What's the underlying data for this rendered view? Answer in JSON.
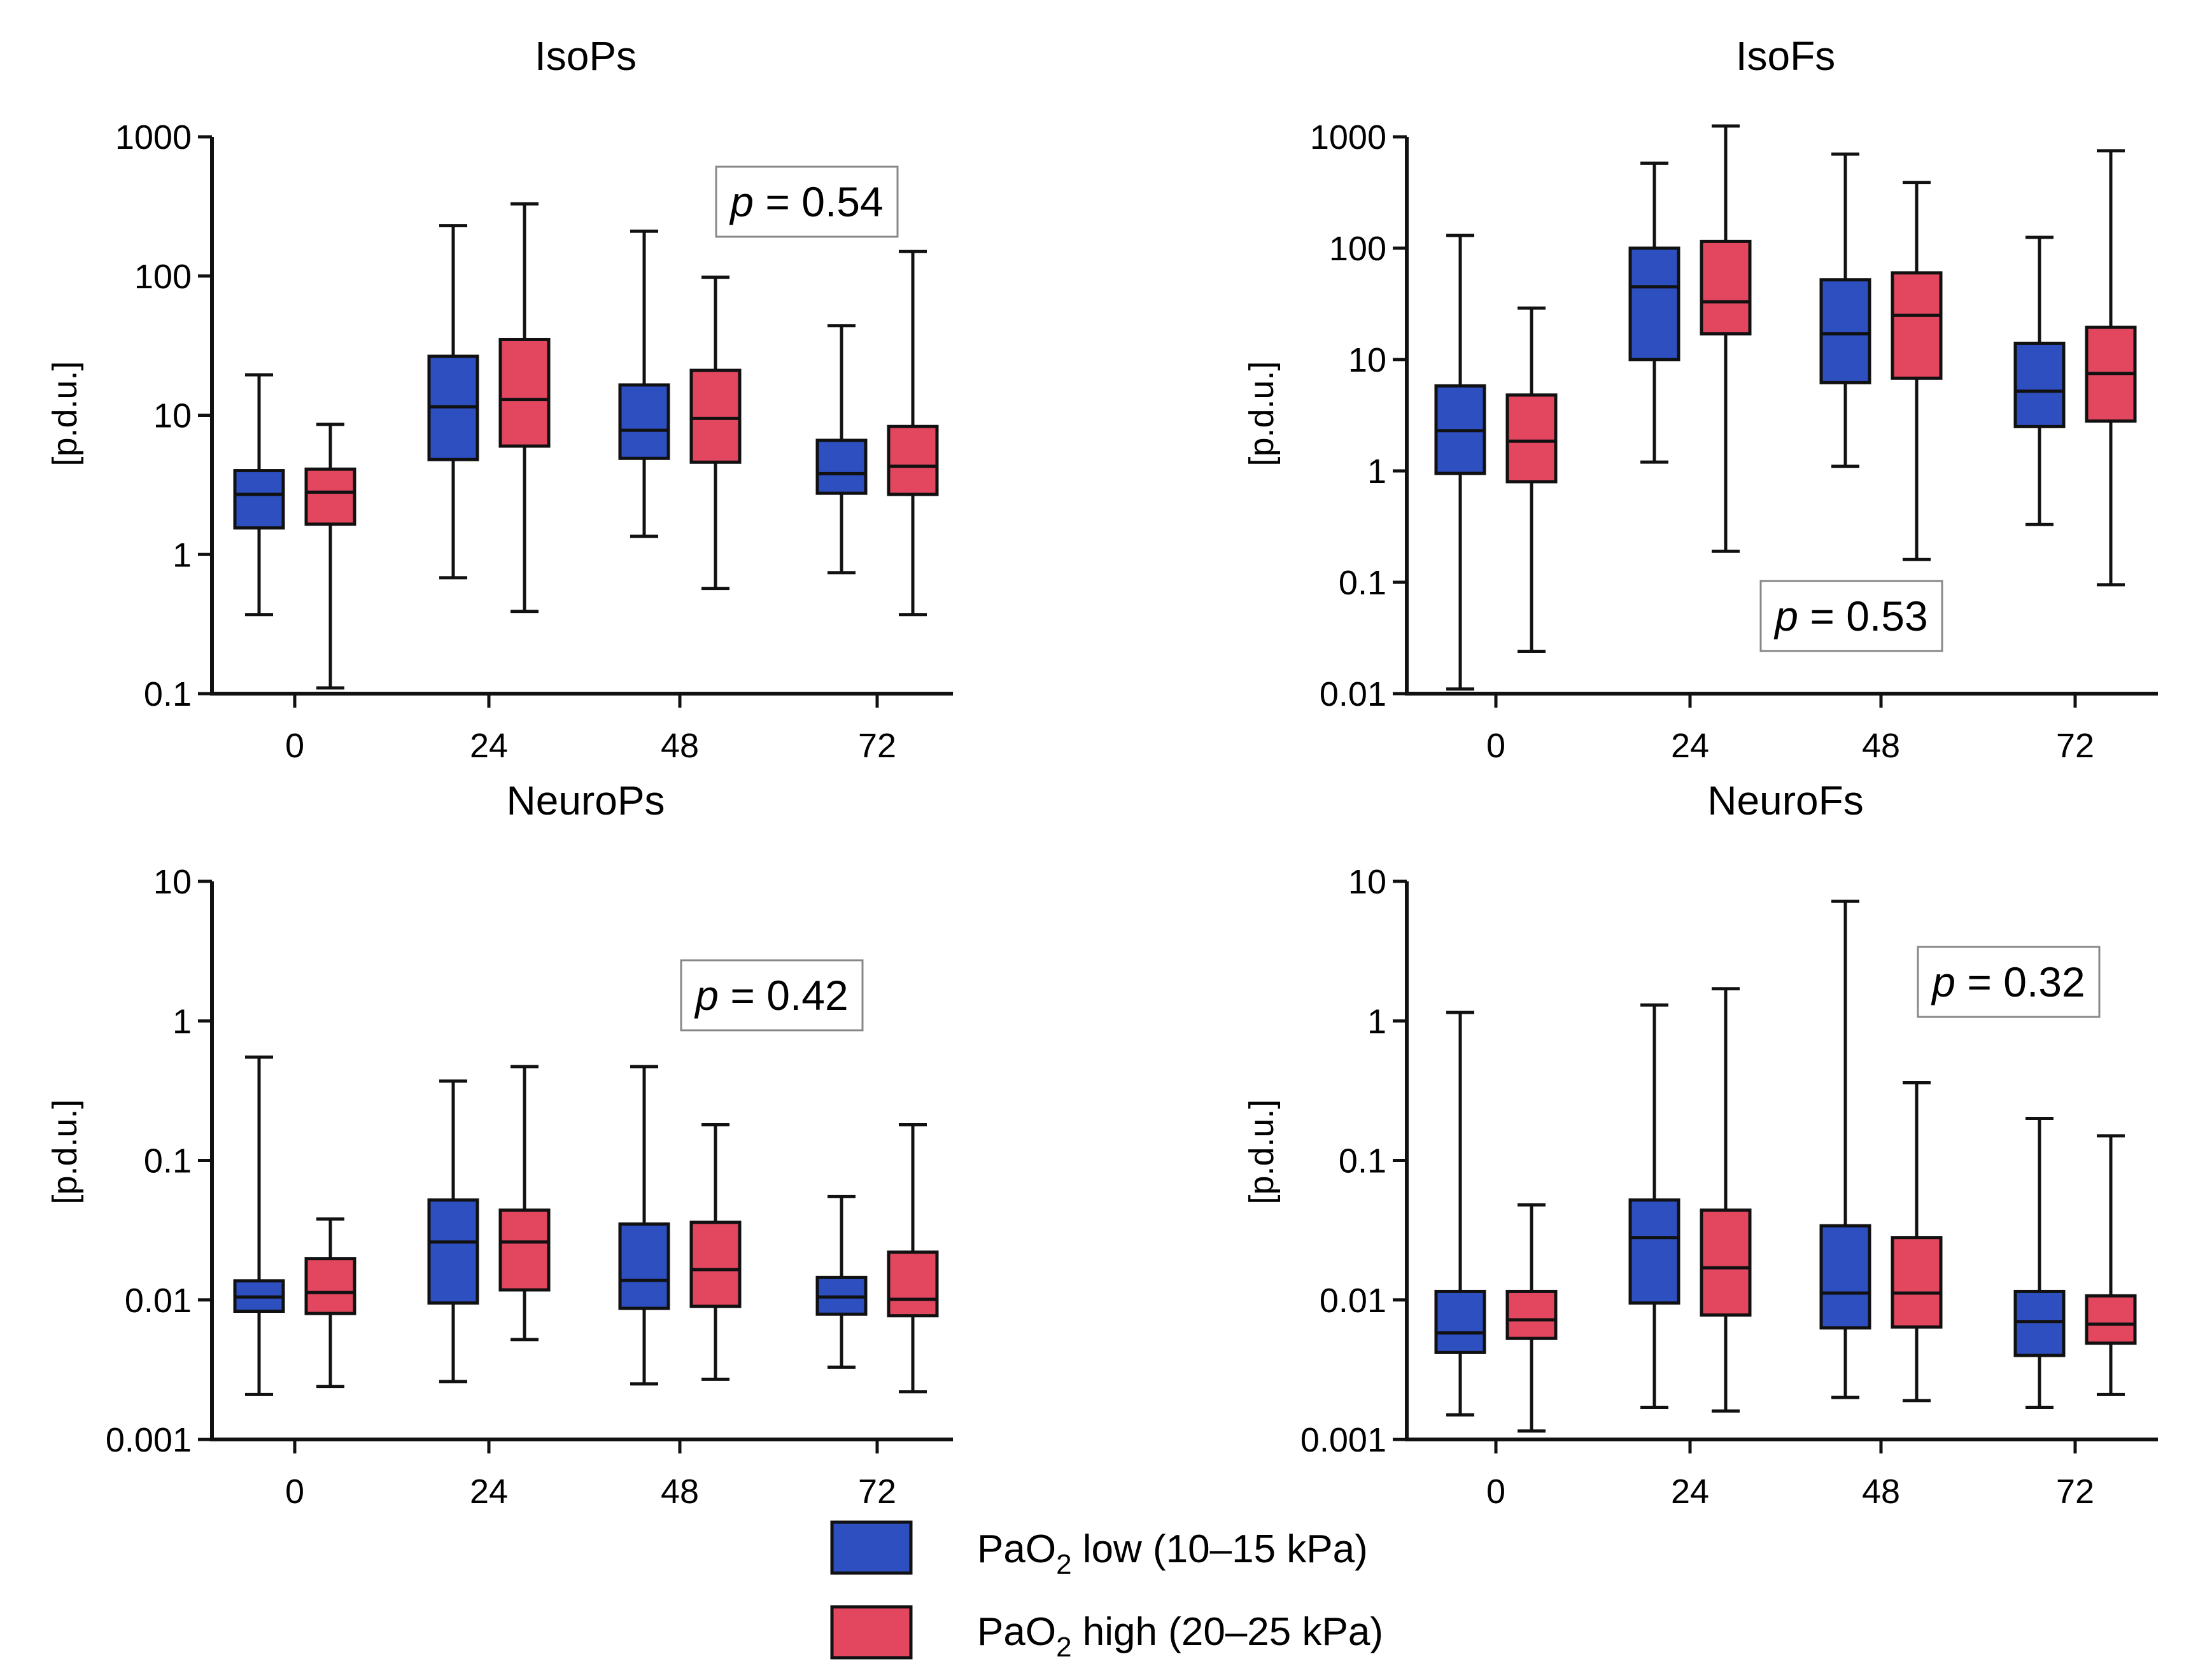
{
  "colors": {
    "low": "#2d4fc0",
    "high": "#e2475f",
    "axis": "#111111"
  },
  "legend": [
    {
      "key": "low",
      "label_main": "PaO",
      "label_sub": "2",
      "label_rest": " low (10–15 kPa)"
    },
    {
      "key": "high",
      "label_main": "PaO",
      "label_sub": "2",
      "label_rest": " high (20–25 kPa)"
    }
  ],
  "chart_data": [
    {
      "type": "boxplot",
      "title": "IsoPs",
      "ylabel": "[p.d.u.]",
      "yscale": "log",
      "ylim": [
        0.1,
        1000
      ],
      "yticks": [
        "0.1",
        "1",
        "10",
        "100",
        "1000"
      ],
      "categories": [
        "0",
        "24",
        "48",
        "72"
      ],
      "pvalue": "0.54",
      "p_label": "p",
      "series": [
        {
          "name": "PaO2 low (10–15 kPa)",
          "color_key": "low",
          "boxes": [
            {
              "min": 0.37,
              "q1": 1.55,
              "median": 2.7,
              "q3": 4.0,
              "max": 19.5
            },
            {
              "min": 0.68,
              "q1": 4.8,
              "median": 11.5,
              "q3": 26.5,
              "max": 230
            },
            {
              "min": 1.35,
              "q1": 4.9,
              "median": 7.8,
              "q3": 16.5,
              "max": 210
            },
            {
              "min": 0.74,
              "q1": 2.75,
              "median": 3.8,
              "q3": 6.6,
              "max": 44
            }
          ]
        },
        {
          "name": "PaO2 high (20–25 kPa)",
          "color_key": "high",
          "boxes": [
            {
              "min": 0.11,
              "q1": 1.65,
              "median": 2.8,
              "q3": 4.1,
              "max": 8.6
            },
            {
              "min": 0.39,
              "q1": 6.0,
              "median": 13.0,
              "q3": 35,
              "max": 330
            },
            {
              "min": 0.57,
              "q1": 4.6,
              "median": 9.5,
              "q3": 21,
              "max": 98
            },
            {
              "min": 0.37,
              "q1": 2.7,
              "median": 4.3,
              "q3": 8.3,
              "max": 150
            }
          ]
        }
      ]
    },
    {
      "type": "boxplot",
      "title": "IsoFs",
      "ylabel": "[p.d.u.]",
      "yscale": "log",
      "ylim": [
        0.01,
        1000
      ],
      "yticks": [
        "0.01",
        "0.1",
        "1",
        "10",
        "100",
        "1000"
      ],
      "categories": [
        "0",
        "24",
        "48",
        "72"
      ],
      "pvalue": "0.53",
      "p_label": "p",
      "series": [
        {
          "name": "PaO2 low (10–15 kPa)",
          "color_key": "low",
          "boxes": [
            {
              "min": 0.011,
              "q1": 0.95,
              "median": 2.3,
              "q3": 5.8,
              "max": 130
            },
            {
              "min": 1.2,
              "q1": 10,
              "median": 45,
              "q3": 100,
              "max": 580
            },
            {
              "min": 1.1,
              "q1": 6.2,
              "median": 17,
              "q3": 52,
              "max": 700
            },
            {
              "min": 0.33,
              "q1": 2.5,
              "median": 5.2,
              "q3": 14,
              "max": 125
            }
          ]
        },
        {
          "name": "PaO2 high (20–25 kPa)",
          "color_key": "high",
          "boxes": [
            {
              "min": 0.024,
              "q1": 0.8,
              "median": 1.85,
              "q3": 4.8,
              "max": 29
            },
            {
              "min": 0.19,
              "q1": 17,
              "median": 33,
              "q3": 115,
              "max": 1250
            },
            {
              "min": 0.16,
              "q1": 6.8,
              "median": 25,
              "q3": 60,
              "max": 390
            },
            {
              "min": 0.095,
              "q1": 2.8,
              "median": 7.5,
              "q3": 19.5,
              "max": 750
            }
          ]
        }
      ]
    },
    {
      "type": "boxplot",
      "title": "NeuroPs",
      "ylabel": "[p.d.u.]",
      "yscale": "log",
      "ylim": [
        0.001,
        10
      ],
      "yticks": [
        "0.001",
        "0.01",
        "0.1",
        "1",
        "10"
      ],
      "categories": [
        "0",
        "24",
        "48",
        "72"
      ],
      "pvalue": "0.42",
      "p_label": "p",
      "series": [
        {
          "name": "PaO2 low (10–15 kPa)",
          "color_key": "low",
          "boxes": [
            {
              "min": 0.0021,
              "q1": 0.0083,
              "median": 0.0105,
              "q3": 0.0137,
              "max": 0.55
            },
            {
              "min": 0.0026,
              "q1": 0.0095,
              "median": 0.026,
              "q3": 0.052,
              "max": 0.37
            },
            {
              "min": 0.0025,
              "q1": 0.0087,
              "median": 0.0138,
              "q3": 0.035,
              "max": 0.47
            },
            {
              "min": 0.0033,
              "q1": 0.0079,
              "median": 0.0105,
              "q3": 0.0145,
              "max": 0.055
            }
          ]
        },
        {
          "name": "PaO2 high (20–25 kPa)",
          "color_key": "high",
          "boxes": [
            {
              "min": 0.0024,
              "q1": 0.008,
              "median": 0.0113,
              "q3": 0.0198,
              "max": 0.038
            },
            {
              "min": 0.0052,
              "q1": 0.0118,
              "median": 0.026,
              "q3": 0.044,
              "max": 0.47
            },
            {
              "min": 0.0027,
              "q1": 0.009,
              "median": 0.0165,
              "q3": 0.036,
              "max": 0.18
            },
            {
              "min": 0.0022,
              "q1": 0.0077,
              "median": 0.0101,
              "q3": 0.022,
              "max": 0.18
            }
          ]
        }
      ]
    },
    {
      "type": "boxplot",
      "title": "NeuroFs",
      "ylabel": "[p.d.u.]",
      "yscale": "log",
      "ylim": [
        0.001,
        10
      ],
      "yticks": [
        "0.001",
        "0.01",
        "0.1",
        "1",
        "10"
      ],
      "categories": [
        "0",
        "24",
        "48",
        "72"
      ],
      "pvalue": "0.32",
      "p_label": "p",
      "series": [
        {
          "name": "PaO2 low (10–15 kPa)",
          "color_key": "low",
          "boxes": [
            {
              "min": 0.0015,
              "q1": 0.0042,
              "median": 0.0058,
              "q3": 0.0115,
              "max": 1.15
            },
            {
              "min": 0.0017,
              "q1": 0.0095,
              "median": 0.028,
              "q3": 0.052,
              "max": 1.3
            },
            {
              "min": 0.002,
              "q1": 0.0063,
              "median": 0.0112,
              "q3": 0.034,
              "max": 7.2
            },
            {
              "min": 0.0017,
              "q1": 0.004,
              "median": 0.007,
              "q3": 0.0115,
              "max": 0.2
            }
          ]
        },
        {
          "name": "PaO2 high (20–25 kPa)",
          "color_key": "high",
          "boxes": [
            {
              "min": 0.00115,
              "q1": 0.0053,
              "median": 0.0072,
              "q3": 0.0115,
              "max": 0.048
            },
            {
              "min": 0.0016,
              "q1": 0.0078,
              "median": 0.017,
              "q3": 0.044,
              "max": 1.7
            },
            {
              "min": 0.0019,
              "q1": 0.0064,
              "median": 0.0112,
              "q3": 0.028,
              "max": 0.36
            },
            {
              "min": 0.0021,
              "q1": 0.0049,
              "median": 0.0067,
              "q3": 0.0107,
              "max": 0.15
            }
          ]
        }
      ]
    }
  ]
}
